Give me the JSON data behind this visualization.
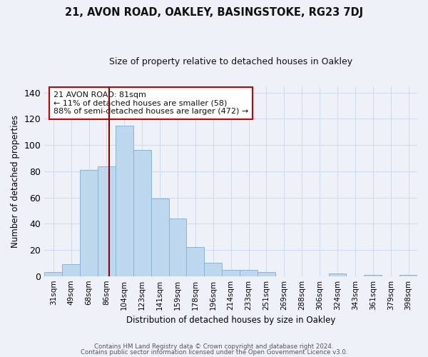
{
  "title1": "21, AVON ROAD, OAKLEY, BASINGSTOKE, RG23 7DJ",
  "title2": "Size of property relative to detached houses in Oakley",
  "xlabel": "Distribution of detached houses by size in Oakley",
  "ylabel": "Number of detached properties",
  "bar_labels": [
    "31sqm",
    "49sqm",
    "68sqm",
    "86sqm",
    "104sqm",
    "123sqm",
    "141sqm",
    "159sqm",
    "178sqm",
    "196sqm",
    "214sqm",
    "233sqm",
    "251sqm",
    "269sqm",
    "288sqm",
    "306sqm",
    "324sqm",
    "343sqm",
    "361sqm",
    "379sqm",
    "398sqm"
  ],
  "bar_values": [
    3,
    9,
    81,
    84,
    115,
    96,
    59,
    44,
    22,
    10,
    5,
    5,
    3,
    0,
    0,
    0,
    2,
    0,
    1,
    0,
    1
  ],
  "bar_color": "#bdd7ee",
  "bar_edge_color": "#8ab4d4",
  "vline_x": 3.15,
  "vline_color": "#8b0000",
  "annotation_text": "21 AVON ROAD: 81sqm\n← 11% of detached houses are smaller (58)\n88% of semi-detached houses are larger (472) →",
  "annotation_box_color": "#ffffff",
  "annotation_box_edge": "#cc0000",
  "ylim": [
    0,
    145
  ],
  "yticks": [
    0,
    20,
    40,
    60,
    80,
    100,
    120,
    140
  ],
  "footer1": "Contains HM Land Registry data © Crown copyright and database right 2024.",
  "footer2": "Contains public sector information licensed under the Open Government Licence v3.0.",
  "bg_color": "#eef2f8",
  "grid_color": "#d0dcea"
}
